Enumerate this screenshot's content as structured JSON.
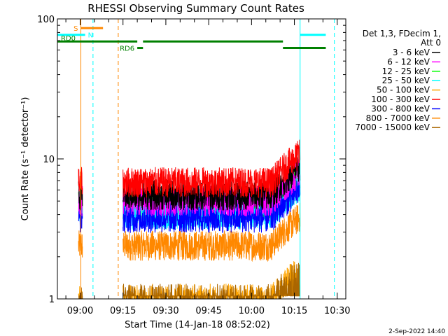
{
  "chart_data": {
    "type": "line",
    "title": "RHESSI Observing Summary Count Rates",
    "ylabel": "Count Rate (s⁻¹ detector⁻¹)",
    "xlabel": "Start Time (14-Jan-18 08:52:02)",
    "y_scale": "log",
    "ylim": [
      1,
      100
    ],
    "xlim": [
      "08:52:02",
      "10:33:00"
    ],
    "yticks": [
      {
        "value": 1,
        "label": "1"
      },
      {
        "value": 10,
        "label": "10"
      },
      {
        "value": 100,
        "label": "100"
      }
    ],
    "xticks": [
      {
        "value": "09:00",
        "label": "09:00"
      },
      {
        "value": "09:15",
        "label": "09:15"
      },
      {
        "value": "09:30",
        "label": "09:30"
      },
      {
        "value": "09:45",
        "label": "09:45"
      },
      {
        "value": "10:00",
        "label": "10:00"
      },
      {
        "value": "10:15",
        "label": "10:15"
      },
      {
        "value": "10:30",
        "label": "10:30"
      }
    ],
    "legend_position": "right",
    "legend_header": [
      "Det 1,3, FDecim 1,",
      "Att 0"
    ],
    "series": [
      {
        "name": "3 - 6 keV",
        "color": "#000000",
        "level": 5.5
      },
      {
        "name": "6 - 12 keV",
        "color": "#ff00ff",
        "level": 5.0
      },
      {
        "name": "12 - 25 keV",
        "color": "#00ff00",
        "level": 4.6
      },
      {
        "name": "25 - 50 keV",
        "color": "#00ffff",
        "level": 4.0
      },
      {
        "name": "50 - 100 keV",
        "color": "#ffa500",
        "level": 1.0
      },
      {
        "name": "100 - 300 keV",
        "color": "#ff0000",
        "level": 6.8
      },
      {
        "name": "300 - 800 keV",
        "color": "#0000ff",
        "level": 3.8
      },
      {
        "name": "800 - 7000 keV",
        "color": "#ff8800",
        "level": 2.4
      },
      {
        "name": "7000 - 15000 keV",
        "color": "#aa6600",
        "level": 1.0
      }
    ],
    "data_intervals": [
      {
        "start": "08:59:25",
        "end": "09:00:50"
      },
      {
        "start": "09:15:00",
        "end": "10:17:00"
      }
    ],
    "annotations": [
      {
        "label": "S",
        "color": "#ff8800",
        "start": "09:00:15",
        "end": "09:08:00",
        "y": 86
      },
      {
        "label": "N",
        "color": "#00ffff",
        "start": "08:52:02",
        "end": "09:01:45",
        "y": 77
      },
      {
        "label": "N",
        "color": "#00ffff",
        "start": "10:17:00",
        "end": "10:26:00",
        "y": 77
      },
      {
        "label": "RD0",
        "color": "#008000",
        "start": "08:52:02",
        "end": "09:20:00",
        "y": 69
      },
      {
        "label": "RD0",
        "color": "#008000",
        "start": "09:22:00",
        "end": "10:11:00",
        "y": 69
      },
      {
        "label": "RD6",
        "color": "#008000",
        "start": "09:20:00",
        "end": "09:22:00",
        "y": 62
      },
      {
        "label": "RD6",
        "color": "#008000",
        "start": "10:11:00",
        "end": "10:26:00",
        "y": 62
      }
    ],
    "vertical_markers": [
      {
        "time": "09:00:15",
        "color": "#ff8800",
        "style": "solid"
      },
      {
        "time": "09:04:30",
        "color": "#00ffff",
        "style": "dashed"
      },
      {
        "time": "09:13:20",
        "color": "#ff8800",
        "style": "dashed"
      },
      {
        "time": "10:17:00",
        "color": "#00ffff",
        "style": "solid"
      },
      {
        "time": "10:29:00",
        "color": "#00ffff",
        "style": "dashed"
      }
    ],
    "timestamp": "2-Sep-2022 14:40"
  }
}
